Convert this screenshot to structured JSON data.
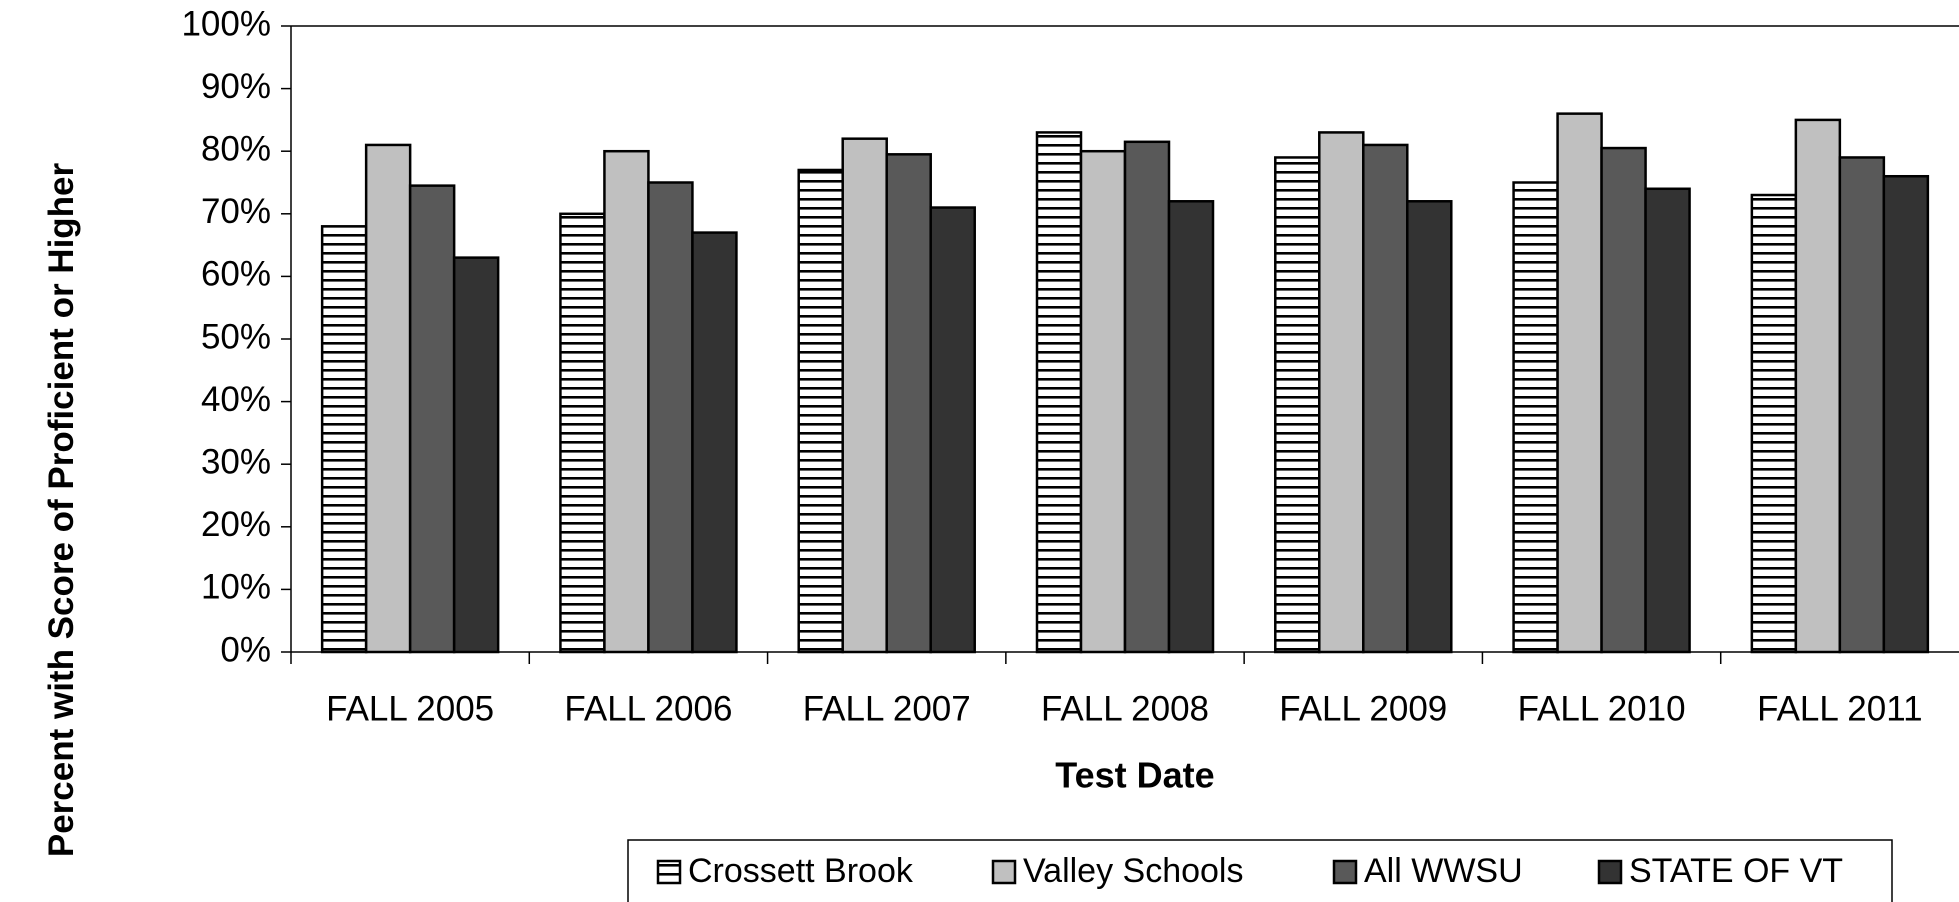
{
  "chart_data": {
    "type": "bar",
    "x_label": "Test Date",
    "y_label": "Percent with Score of Proficient or Higher",
    "categories": [
      "FALL 2005",
      "FALL 2006",
      "FALL 2007",
      "FALL 2008",
      "FALL 2009",
      "FALL 2010",
      "FALL 2011"
    ],
    "series": [
      {
        "name": "Crossett Brook",
        "color": "#ffffff",
        "pattern": "horizontal-stripes",
        "values": [
          68,
          70,
          77,
          83,
          79,
          75,
          73
        ]
      },
      {
        "name": "Valley Schools",
        "color": "#c0c0c0",
        "values": [
          81,
          80,
          82,
          80,
          83,
          86,
          85
        ]
      },
      {
        "name": "All WWSU",
        "color": "#595959",
        "values": [
          74.5,
          75,
          79.5,
          81.5,
          81,
          80.5,
          79
        ]
      },
      {
        "name": "STATE OF VT",
        "color": "#333333",
        "values": [
          63,
          67,
          71,
          72,
          72,
          74,
          76
        ]
      }
    ],
    "ylim": [
      0,
      100
    ],
    "yticks": [
      {
        "value": 0,
        "label": "0%"
      },
      {
        "value": 10,
        "label": "10%"
      },
      {
        "value": 20,
        "label": "20%"
      },
      {
        "value": 30,
        "label": "30%"
      },
      {
        "value": 40,
        "label": "40%"
      },
      {
        "value": 50,
        "label": "50%"
      },
      {
        "value": 60,
        "label": "60%"
      },
      {
        "value": 70,
        "label": "70%"
      },
      {
        "value": 80,
        "label": "80%"
      },
      {
        "value": 90,
        "label": "90%"
      },
      {
        "value": 100,
        "label": "100%"
      }
    ],
    "legend": "bottom"
  }
}
